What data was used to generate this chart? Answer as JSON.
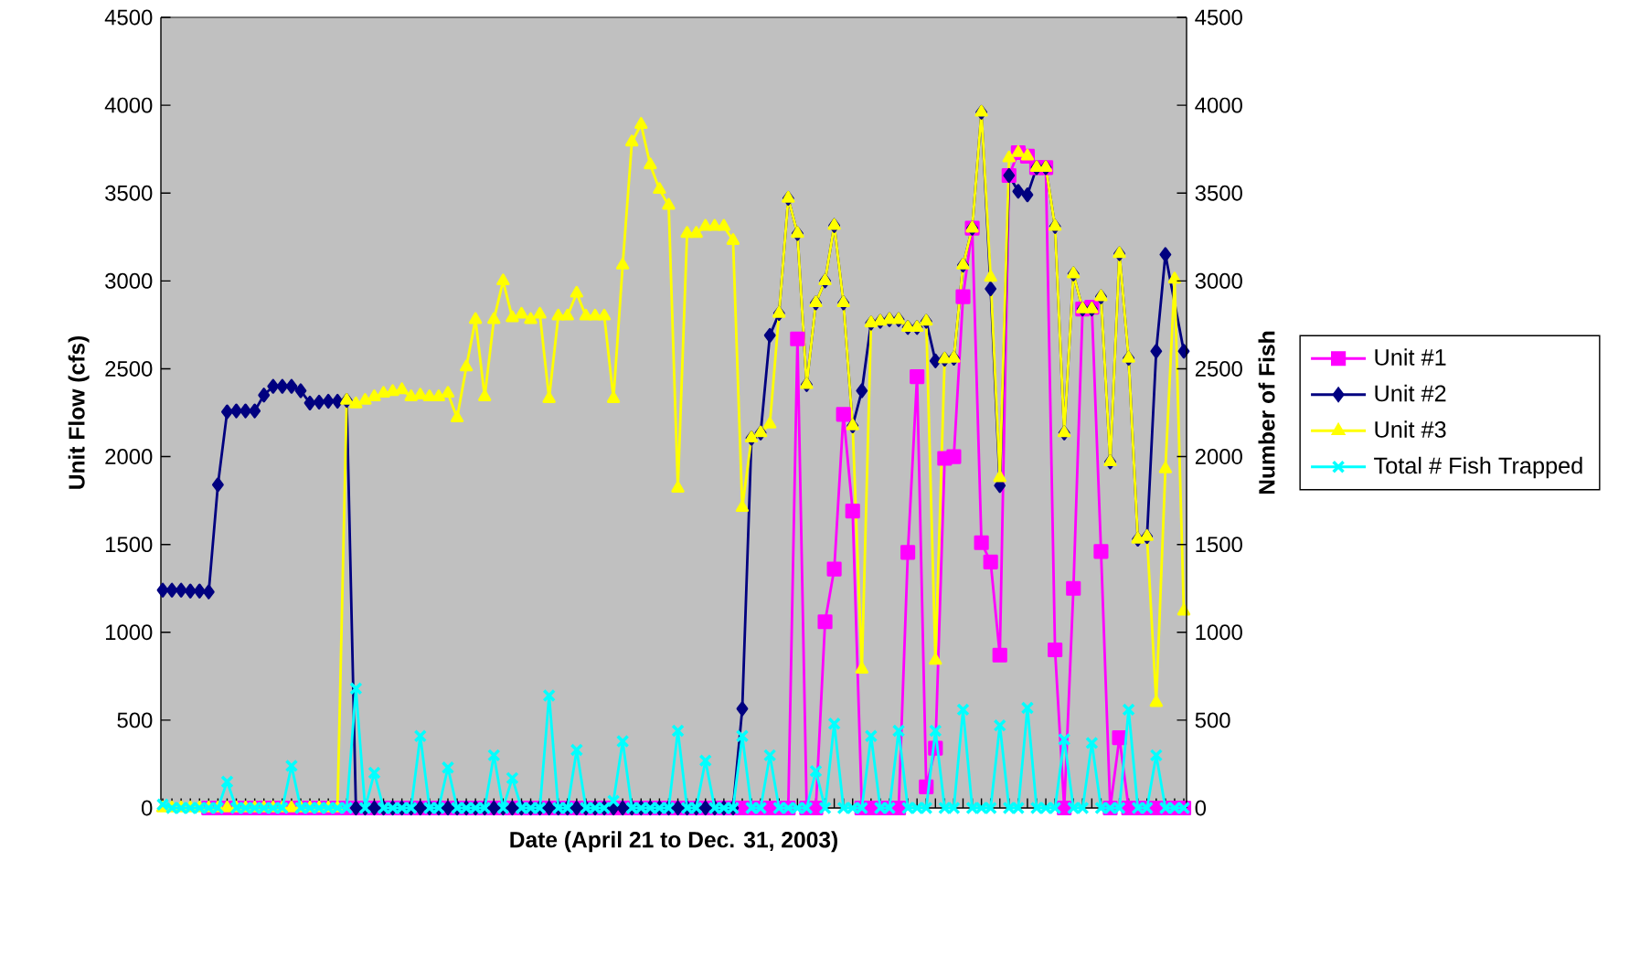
{
  "chart_data": {
    "type": "line",
    "xlabel": "Date (April 21 to Dec. 31, 2003)",
    "ylabel": "Unit Flow (cfs)",
    "y2label": "Number of Fish",
    "categories": [
      null,
      null,
      null,
      null,
      null,
      null,
      null,
      null,
      null,
      null,
      null,
      null,
      null,
      null,
      null,
      null,
      null,
      null,
      null,
      null,
      null,
      null,
      null,
      null,
      null,
      null,
      null,
      null,
      null,
      null,
      null,
      null,
      null,
      null,
      null,
      null,
      null,
      null,
      null,
      null,
      null,
      null,
      null,
      null,
      null,
      null,
      null,
      null,
      null,
      null,
      null,
      null,
      null,
      null,
      null,
      null,
      null,
      null,
      null,
      null,
      null,
      null,
      null,
      null,
      null,
      null,
      null,
      null,
      null,
      null,
      null,
      null,
      null,
      null,
      null,
      null,
      null,
      null,
      null,
      null,
      null,
      null,
      null,
      null,
      null,
      null,
      null,
      null,
      null,
      null,
      null,
      null,
      null,
      null,
      null,
      null,
      null,
      null,
      null,
      null,
      null,
      null,
      null,
      null,
      null,
      null,
      null,
      null,
      null,
      null,
      null,
      null
    ],
    "ylim": [
      0,
      4500
    ],
    "yticks": [
      0,
      500,
      1000,
      1500,
      2000,
      2500,
      3000,
      3500,
      4000,
      4500
    ],
    "y2lim": [
      0,
      4500
    ],
    "y2ticks": [
      0,
      500,
      1000,
      1500,
      2000,
      2500,
      3000,
      3500,
      4000,
      4500
    ],
    "legend": "right",
    "series": [
      {
        "name": "Unit #1",
        "color": "#ff00ff",
        "marker": "square",
        "values": [
          null,
          null,
          null,
          null,
          null,
          0,
          0,
          0,
          0,
          0,
          0,
          0,
          0,
          0,
          0,
          0,
          0,
          0,
          0,
          0,
          0,
          0,
          0,
          0,
          0,
          0,
          0,
          0,
          0,
          0,
          0,
          0,
          0,
          0,
          0,
          0,
          0,
          0,
          0,
          0,
          0,
          0,
          0,
          0,
          0,
          0,
          0,
          0,
          0,
          0,
          0,
          0,
          0,
          0,
          0,
          0,
          0,
          0,
          0,
          0,
          0,
          0,
          0,
          0,
          0,
          0,
          0,
          0,
          0,
          2670,
          0,
          0,
          1060,
          1360,
          2240,
          1690,
          0,
          0,
          0,
          0,
          0,
          1455,
          2455,
          120,
          340,
          1990,
          2000,
          2910,
          3300,
          1510,
          1400,
          870,
          3600,
          3730,
          3710,
          3645,
          3645,
          900,
          0,
          1250,
          2840,
          2850,
          1460,
          0,
          400,
          0,
          0,
          0,
          0,
          0,
          0,
          0
        ]
      },
      {
        "name": "Unit #2",
        "color": "#000080",
        "marker": "diamond",
        "values": [
          1240,
          1240,
          1240,
          1235,
          1235,
          1230,
          1840,
          2255,
          2260,
          2260,
          2260,
          2350,
          2400,
          2400,
          2400,
          2375,
          2305,
          2310,
          2315,
          2315,
          2320,
          0,
          0,
          0,
          0,
          0,
          0,
          0,
          0,
          0,
          0,
          0,
          0,
          0,
          0,
          0,
          0,
          0,
          0,
          0,
          0,
          0,
          0,
          0,
          0,
          0,
          0,
          0,
          0,
          0,
          0,
          0,
          0,
          0,
          0,
          0,
          0,
          0,
          0,
          0,
          0,
          0,
          0,
          565,
          2105,
          2135,
          2690,
          2815,
          3470,
          3270,
          2410,
          2875,
          3000,
          3315,
          2875,
          2175,
          2375,
          2760,
          2770,
          2780,
          2780,
          2735,
          2735,
          2770,
          2545,
          2555,
          2560,
          3090,
          3300,
          3960,
          2955,
          1835,
          3600,
          3510,
          3490,
          3645,
          3645,
          3310,
          2135,
          3040,
          2840,
          2840,
          2910,
          1970,
          3155,
          2560,
          1530,
          1545,
          2600,
          3150,
          null,
          2600
        ]
      },
      {
        "name": "Unit #3",
        "color": "#ffff00",
        "marker": "triangle",
        "values": [
          0,
          0,
          0,
          0,
          0,
          0,
          0,
          0,
          0,
          0,
          0,
          0,
          0,
          0,
          0,
          0,
          0,
          0,
          0,
          0,
          2320,
          2300,
          2320,
          2340,
          2360,
          2370,
          2380,
          2340,
          2350,
          2340,
          2340,
          2360,
          2220,
          2510,
          2780,
          2340,
          2780,
          3000,
          2790,
          2810,
          2780,
          2810,
          2330,
          2800,
          2800,
          2930,
          2800,
          2800,
          2800,
          2330,
          3090,
          3790,
          3890,
          3660,
          3520,
          3430,
          1820,
          3270,
          3270,
          3310,
          3310,
          3310,
          3230,
          1710,
          2105,
          2135,
          2185,
          2815,
          3470,
          3270,
          2410,
          2875,
          3000,
          3315,
          2875,
          2175,
          790,
          2760,
          2770,
          2780,
          2780,
          2735,
          2735,
          2770,
          840,
          2555,
          2560,
          3090,
          3300,
          3960,
          3020,
          1880,
          3700,
          3730,
          3710,
          3645,
          3645,
          3310,
          2135,
          3040,
          2840,
          2840,
          2910,
          1970,
          3155,
          2560,
          1530,
          1545,
          600,
          1930,
          3010,
          1120
        ]
      },
      {
        "name": "Total # Fish Trapped",
        "color": "#00ffff",
        "marker": "cross",
        "axis": "y2",
        "values": [
          20,
          0,
          0,
          0,
          0,
          0,
          0,
          150,
          0,
          0,
          0,
          0,
          0,
          0,
          240,
          0,
          0,
          0,
          0,
          0,
          0,
          680,
          0,
          200,
          0,
          0,
          0,
          0,
          410,
          0,
          0,
          230,
          0,
          0,
          0,
          0,
          300,
          0,
          170,
          0,
          0,
          0,
          640,
          0,
          0,
          330,
          0,
          0,
          0,
          40,
          380,
          0,
          0,
          0,
          0,
          0,
          440,
          0,
          0,
          270,
          0,
          0,
          0,
          410,
          0,
          0,
          300,
          0,
          0,
          0,
          0,
          210,
          0,
          480,
          0,
          0,
          0,
          410,
          0,
          0,
          440,
          0,
          0,
          0,
          440,
          0,
          0,
          560,
          0,
          0,
          0,
          470,
          0,
          0,
          570,
          0,
          0,
          0,
          390,
          0,
          0,
          370,
          0,
          0,
          0,
          560,
          0,
          0,
          300,
          0,
          0,
          0
        ]
      }
    ]
  }
}
